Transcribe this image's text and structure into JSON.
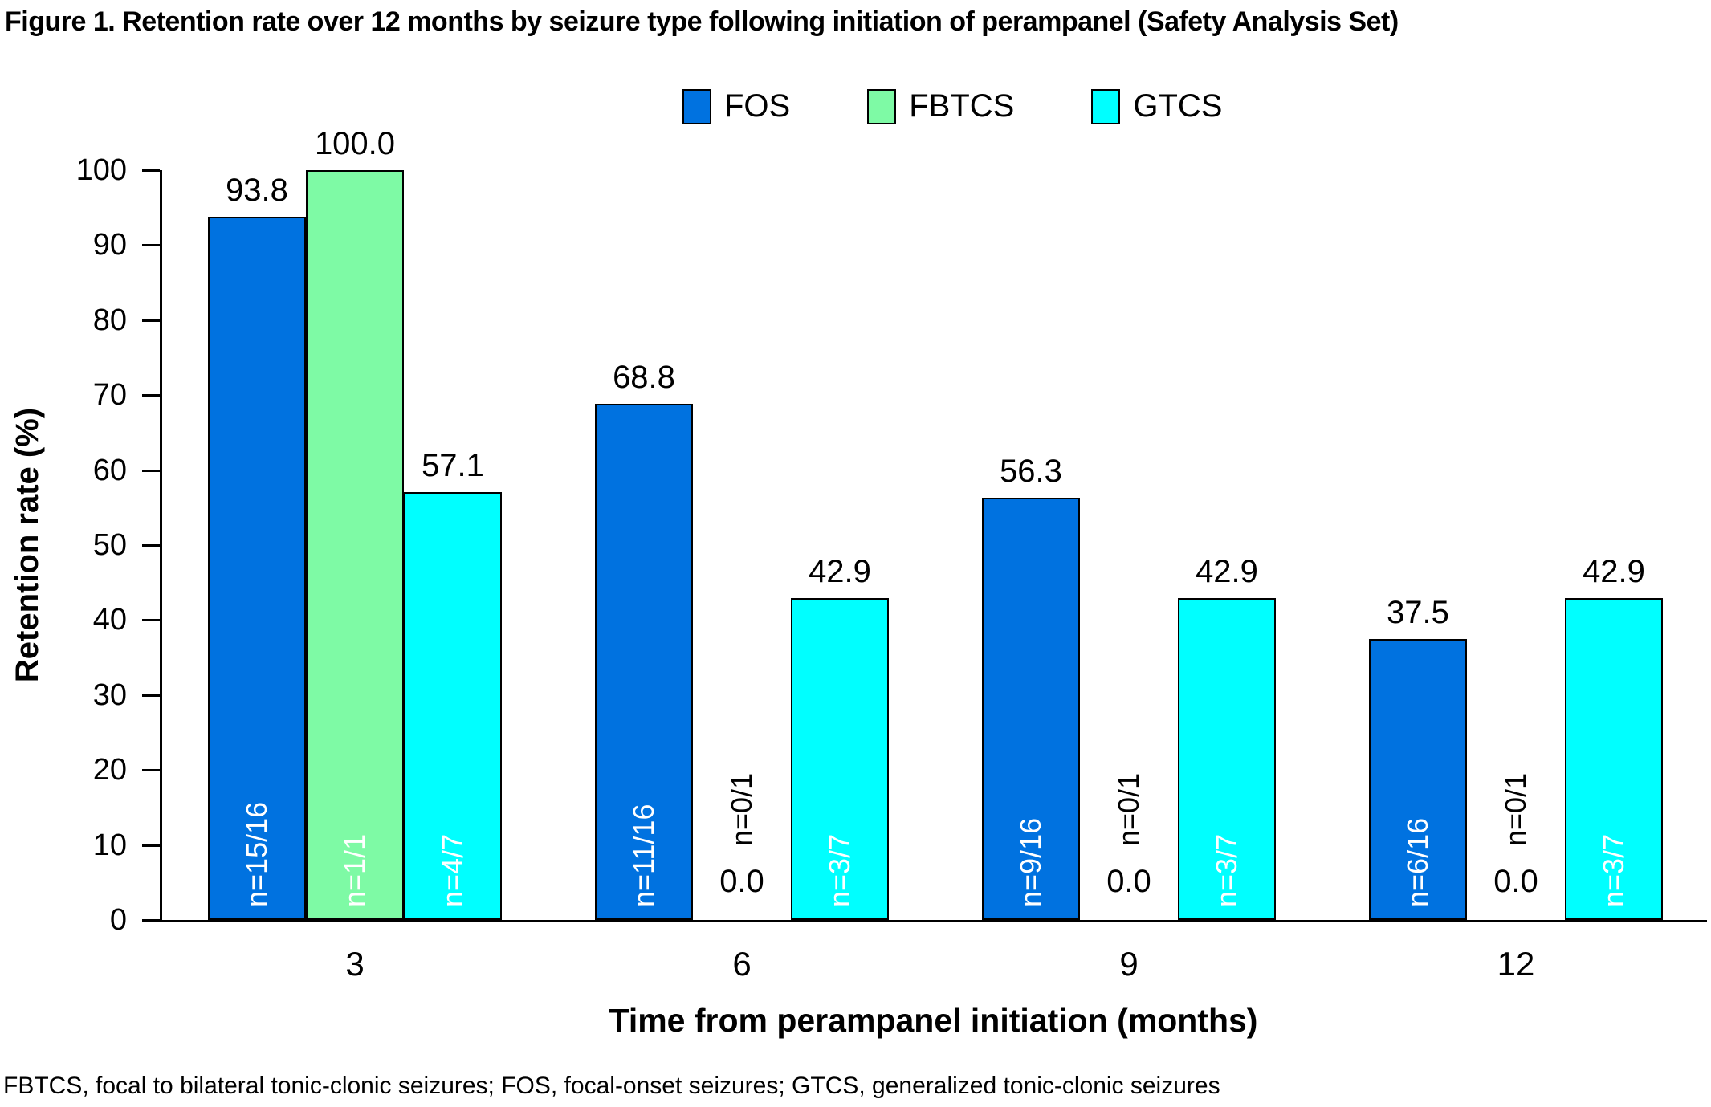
{
  "chart_data": {
    "type": "bar",
    "title": "Figure 1. Retention rate over 12 months by seizure type following initiation of perampanel (Safety Analysis Set)",
    "xlabel": "Time from perampanel initiation (months)",
    "ylabel": "Retention rate (%)",
    "footnote": "FBTCS, focal to bilateral tonic-clonic seizures; FOS, focal-onset seizures; GTCS, generalized tonic-clonic seizures",
    "ylim": [
      0,
      100
    ],
    "yticks": [
      0,
      10,
      20,
      30,
      40,
      50,
      60,
      70,
      80,
      90,
      100
    ],
    "grid": false,
    "legend_position": "top-center",
    "legend_entries": [
      "FOS",
      "FBTCS",
      "GTCS"
    ],
    "categories": [
      "3",
      "6",
      "9",
      "12"
    ],
    "series": [
      {
        "name": "FOS",
        "color": "#0072E0",
        "values": [
          93.8,
          68.8,
          56.3,
          37.5
        ],
        "bar_labels": [
          "n=15/16",
          "n=11/16",
          "n=9/16",
          "n=6/16"
        ]
      },
      {
        "name": "FBTCS",
        "color": "#7EFAA5",
        "values": [
          100.0,
          0.0,
          0.0,
          0.0
        ],
        "bar_labels": [
          "n=1/1",
          "n=0/1",
          "n=0/1",
          "n=0/1"
        ]
      },
      {
        "name": "GTCS",
        "color": "#00FFFF",
        "values": [
          57.1,
          42.9,
          42.9,
          42.9
        ],
        "bar_labels": [
          "n=4/7",
          "n=3/7",
          "n=3/7",
          "n=3/7"
        ]
      }
    ],
    "value_label_format": "one-decimal",
    "bar_outline_color": "#000000"
  }
}
